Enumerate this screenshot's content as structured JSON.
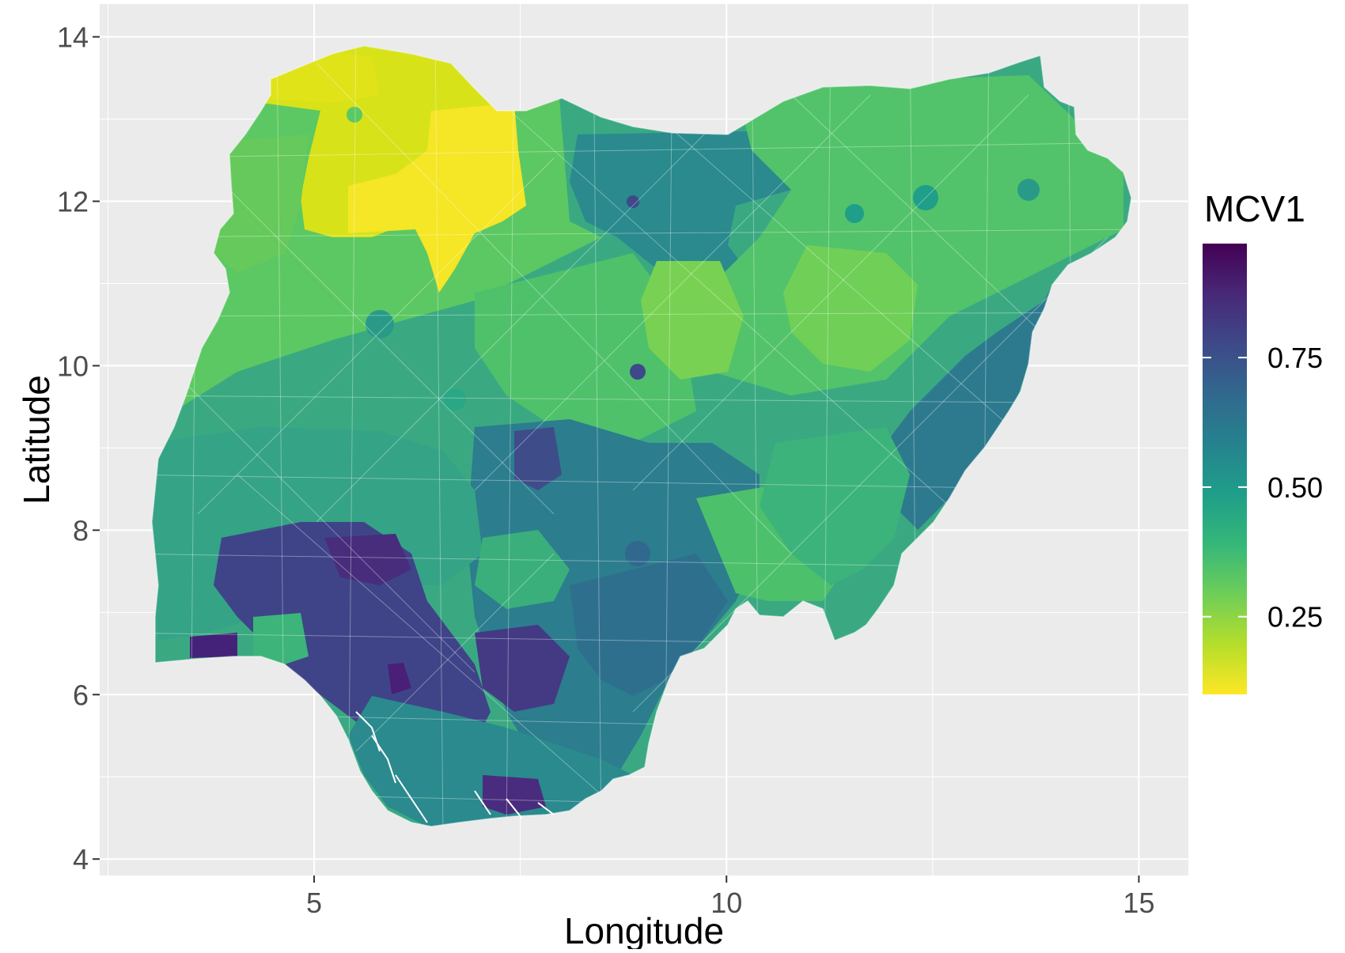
{
  "map": {
    "x_axis_title": "Longitude",
    "y_axis_title": "Latitude",
    "x_ticks": [
      {
        "value": 5,
        "label": "5"
      },
      {
        "value": 10,
        "label": "10"
      },
      {
        "value": 15,
        "label": "15"
      }
    ],
    "y_ticks": [
      {
        "value": 4,
        "label": "4"
      },
      {
        "value": 6,
        "label": "6"
      },
      {
        "value": 8,
        "label": "8"
      },
      {
        "value": 10,
        "label": "10"
      },
      {
        "value": 12,
        "label": "12"
      },
      {
        "value": 14,
        "label": "14"
      }
    ],
    "x_range": [
      2.4,
      15.6
    ],
    "y_range": [
      3.8,
      14.4
    ],
    "panel_background": "#ebebeb",
    "grid_color": "#ffffff",
    "grid": true
  },
  "legend": {
    "title": "MCV1",
    "placement": "right",
    "scale_min": 0.1,
    "scale_max": 0.97,
    "breaks": [
      {
        "value": 0.25,
        "label": "0.25"
      },
      {
        "value": 0.5,
        "label": "0.50"
      },
      {
        "value": 0.75,
        "label": "0.75"
      }
    ],
    "palette": [
      "#fde725",
      "#b5de2b",
      "#6ece58",
      "#35b779",
      "#1f9e89",
      "#26828e",
      "#31688e",
      "#3e4989",
      "#482878",
      "#440154"
    ]
  }
}
